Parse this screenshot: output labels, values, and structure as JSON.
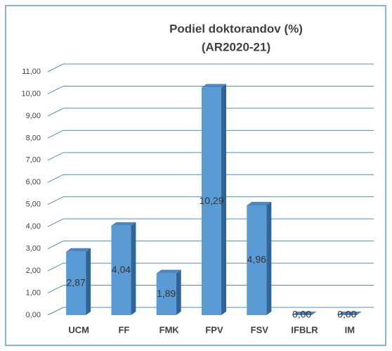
{
  "chart_data": {
    "type": "bar",
    "title": "Podiel doktorandov (%)",
    "subtitle": "(AR2020-21)",
    "categories": [
      "UCM",
      "FF",
      "FMK",
      "FPV",
      "FSV",
      "IFBLR",
      "IM"
    ],
    "values": [
      2.87,
      4.04,
      1.89,
      10.29,
      4.96,
      0,
      0
    ],
    "value_labels": [
      "2,87",
      "4,04",
      "1,89",
      "10,29",
      "4,96",
      "0,00",
      "0,00"
    ],
    "color": "#5b9bd5",
    "ylim": [
      0,
      11
    ],
    "yticks": [
      {
        "value": 0,
        "label": "0,00"
      },
      {
        "value": 1,
        "label": "1,00"
      },
      {
        "value": 2,
        "label": "2,00"
      },
      {
        "value": 3,
        "label": "3,00"
      },
      {
        "value": 4,
        "label": "4,00"
      },
      {
        "value": 5,
        "label": "5,00"
      },
      {
        "value": 6,
        "label": "6,00"
      },
      {
        "value": 7,
        "label": "7,00"
      },
      {
        "value": 8,
        "label": "8,00"
      },
      {
        "value": 9,
        "label": "9,00"
      },
      {
        "value": 10,
        "label": "10,00"
      },
      {
        "value": 11,
        "label": "11,00"
      }
    ],
    "grid": true
  }
}
